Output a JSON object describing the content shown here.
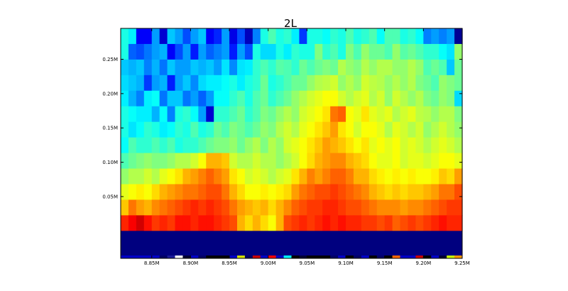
{
  "chart_data": {
    "type": "heatmap",
    "title": "2L",
    "xlabel": "",
    "ylabel": "",
    "x_range": [
      8810000,
      9250000
    ],
    "y_range": [
      -0.04,
      0.295
    ],
    "x_ticks": [
      8850000,
      8900000,
      8950000,
      9000000,
      9050000,
      9100000,
      9150000,
      9200000,
      9250000
    ],
    "x_tick_labels": [
      "8.85M",
      "8.90M",
      "8.95M",
      "9.00M",
      "9.05M",
      "9.10M",
      "9.15M",
      "9.20M",
      "9.25M"
    ],
    "y_ticks": [
      0.05,
      0.1,
      0.15,
      0.2,
      0.25
    ],
    "y_tick_labels": [
      "0.05M",
      "0.10M",
      "0.15M",
      "0.20M",
      "0.25M"
    ],
    "colormap": "jet",
    "value_range": [
      0,
      1
    ],
    "grid": false,
    "n_columns": 44,
    "n_rows": 13,
    "row_labels_bottom_to_top": [
      "0.05",
      "0.07",
      "0.09",
      "0.11",
      "0.13",
      "0.15",
      "0.17",
      "0.19",
      "0.21",
      "0.23",
      "0.25",
      "0.27",
      "0.29"
    ],
    "rows_top_to_bottom": [
      [
        0.4,
        0.36,
        0.12,
        0.12,
        0.28,
        0.08,
        0.32,
        0.28,
        0.2,
        0.28,
        0.32,
        0.12,
        0.16,
        0.28,
        0.1,
        0.2,
        0.06,
        0.25,
        0.4,
        0.45,
        0.4,
        0.42,
        0.36,
        0.18,
        0.4,
        0.4,
        0.38,
        0.42,
        0.4,
        0.45,
        0.4,
        0.42,
        0.45,
        0.38,
        0.45,
        0.45,
        0.4,
        0.42,
        0.38,
        0.25,
        0.28,
        0.25,
        0.28,
        0.02
      ],
      [
        0.4,
        0.22,
        0.2,
        0.24,
        0.28,
        0.3,
        0.12,
        0.2,
        0.28,
        0.15,
        0.28,
        0.22,
        0.25,
        0.28,
        0.15,
        0.28,
        0.2,
        0.4,
        0.34,
        0.34,
        0.4,
        0.36,
        0.42,
        0.4,
        0.4,
        0.5,
        0.42,
        0.45,
        0.4,
        0.5,
        0.45,
        0.52,
        0.48,
        0.48,
        0.45,
        0.52,
        0.46,
        0.48,
        0.45,
        0.42,
        0.42,
        0.38,
        0.35,
        0.52
      ],
      [
        0.32,
        0.3,
        0.32,
        0.25,
        0.3,
        0.24,
        0.32,
        0.28,
        0.28,
        0.32,
        0.3,
        0.32,
        0.28,
        0.35,
        0.26,
        0.35,
        0.36,
        0.42,
        0.45,
        0.42,
        0.46,
        0.45,
        0.42,
        0.48,
        0.45,
        0.48,
        0.5,
        0.48,
        0.55,
        0.52,
        0.5,
        0.55,
        0.52,
        0.55,
        0.55,
        0.52,
        0.52,
        0.55,
        0.52,
        0.45,
        0.48,
        0.45,
        0.32,
        0.48
      ],
      [
        0.34,
        0.32,
        0.3,
        0.18,
        0.28,
        0.3,
        0.15,
        0.28,
        0.32,
        0.26,
        0.34,
        0.36,
        0.36,
        0.38,
        0.4,
        0.36,
        0.4,
        0.42,
        0.48,
        0.4,
        0.42,
        0.45,
        0.48,
        0.48,
        0.52,
        0.55,
        0.56,
        0.58,
        0.52,
        0.55,
        0.52,
        0.58,
        0.56,
        0.55,
        0.52,
        0.55,
        0.52,
        0.55,
        0.5,
        0.48,
        0.45,
        0.52,
        0.5,
        0.48
      ],
      [
        0.36,
        0.3,
        0.25,
        0.36,
        0.38,
        0.24,
        0.32,
        0.32,
        0.24,
        0.28,
        0.22,
        0.28,
        0.38,
        0.38,
        0.42,
        0.45,
        0.4,
        0.45,
        0.48,
        0.42,
        0.45,
        0.48,
        0.52,
        0.55,
        0.58,
        0.6,
        0.62,
        0.62,
        0.58,
        0.55,
        0.58,
        0.6,
        0.55,
        0.58,
        0.52,
        0.58,
        0.55,
        0.52,
        0.55,
        0.5,
        0.48,
        0.52,
        0.5,
        0.34
      ],
      [
        0.4,
        0.38,
        0.36,
        0.36,
        0.3,
        0.38,
        0.25,
        0.4,
        0.42,
        0.38,
        0.28,
        0.08,
        0.42,
        0.42,
        0.45,
        0.48,
        0.42,
        0.45,
        0.5,
        0.48,
        0.52,
        0.55,
        0.52,
        0.58,
        0.6,
        0.62,
        0.65,
        0.76,
        0.78,
        0.62,
        0.6,
        0.65,
        0.6,
        0.58,
        0.6,
        0.55,
        0.58,
        0.6,
        0.56,
        0.55,
        0.52,
        0.55,
        0.55,
        0.5
      ],
      [
        0.4,
        0.35,
        0.38,
        0.42,
        0.4,
        0.36,
        0.38,
        0.42,
        0.4,
        0.45,
        0.4,
        0.42,
        0.48,
        0.45,
        0.5,
        0.48,
        0.45,
        0.48,
        0.52,
        0.5,
        0.55,
        0.58,
        0.55,
        0.6,
        0.62,
        0.65,
        0.68,
        0.72,
        0.65,
        0.62,
        0.58,
        0.62,
        0.62,
        0.6,
        0.55,
        0.6,
        0.58,
        0.55,
        0.58,
        0.52,
        0.55,
        0.58,
        0.55,
        0.52
      ],
      [
        0.38,
        0.45,
        0.42,
        0.42,
        0.45,
        0.42,
        0.45,
        0.4,
        0.42,
        0.42,
        0.45,
        0.48,
        0.5,
        0.5,
        0.52,
        0.48,
        0.52,
        0.55,
        0.5,
        0.55,
        0.52,
        0.58,
        0.6,
        0.62,
        0.65,
        0.68,
        0.72,
        0.7,
        0.68,
        0.65,
        0.62,
        0.65,
        0.6,
        0.62,
        0.6,
        0.62,
        0.58,
        0.6,
        0.58,
        0.55,
        0.58,
        0.6,
        0.58,
        0.55
      ],
      [
        0.45,
        0.48,
        0.5,
        0.52,
        0.5,
        0.5,
        0.52,
        0.55,
        0.55,
        0.58,
        0.62,
        0.7,
        0.7,
        0.68,
        0.58,
        0.55,
        0.55,
        0.58,
        0.55,
        0.55,
        0.52,
        0.55,
        0.58,
        0.62,
        0.66,
        0.7,
        0.72,
        0.74,
        0.74,
        0.7,
        0.68,
        0.66,
        0.62,
        0.6,
        0.6,
        0.62,
        0.58,
        0.6,
        0.6,
        0.58,
        0.6,
        0.62,
        0.62,
        0.6
      ],
      [
        0.52,
        0.55,
        0.55,
        0.58,
        0.55,
        0.6,
        0.62,
        0.65,
        0.7,
        0.72,
        0.75,
        0.78,
        0.75,
        0.72,
        0.65,
        0.62,
        0.58,
        0.6,
        0.58,
        0.55,
        0.58,
        0.6,
        0.65,
        0.7,
        0.75,
        0.72,
        0.75,
        0.78,
        0.78,
        0.75,
        0.7,
        0.7,
        0.66,
        0.64,
        0.62,
        0.64,
        0.62,
        0.64,
        0.62,
        0.62,
        0.64,
        0.68,
        0.66,
        0.72
      ],
      [
        0.6,
        0.62,
        0.64,
        0.62,
        0.66,
        0.7,
        0.72,
        0.74,
        0.76,
        0.76,
        0.78,
        0.8,
        0.8,
        0.76,
        0.7,
        0.66,
        0.62,
        0.62,
        0.64,
        0.62,
        0.64,
        0.66,
        0.72,
        0.76,
        0.78,
        0.8,
        0.8,
        0.82,
        0.8,
        0.78,
        0.76,
        0.74,
        0.7,
        0.68,
        0.66,
        0.68,
        0.66,
        0.68,
        0.68,
        0.7,
        0.72,
        0.76,
        0.76,
        0.8
      ],
      [
        0.68,
        0.76,
        0.72,
        0.7,
        0.74,
        0.76,
        0.78,
        0.8,
        0.82,
        0.84,
        0.82,
        0.84,
        0.82,
        0.8,
        0.76,
        0.72,
        0.7,
        0.68,
        0.7,
        0.66,
        0.7,
        0.74,
        0.78,
        0.8,
        0.82,
        0.82,
        0.84,
        0.84,
        0.82,
        0.8,
        0.8,
        0.78,
        0.76,
        0.74,
        0.74,
        0.74,
        0.72,
        0.74,
        0.74,
        0.76,
        0.78,
        0.8,
        0.82,
        0.82
      ],
      [
        0.84,
        0.88,
        0.92,
        0.86,
        0.82,
        0.84,
        0.82,
        0.86,
        0.86,
        0.84,
        0.86,
        0.86,
        0.84,
        0.82,
        0.8,
        0.7,
        0.66,
        0.7,
        0.66,
        0.62,
        0.7,
        0.8,
        0.82,
        0.84,
        0.82,
        0.84,
        0.86,
        0.84,
        0.86,
        0.84,
        0.84,
        0.82,
        0.82,
        0.8,
        0.82,
        0.78,
        0.8,
        0.82,
        0.8,
        0.82,
        0.84,
        0.86,
        0.84,
        0.84
      ]
    ],
    "masked_band": {
      "y_range": [
        -0.04,
        0.0
      ],
      "value": 0.0
    },
    "bottom_strip_colors": [
      "#0000c8",
      "#0000c8",
      "#0000c8",
      "#0000c8",
      "#0000c8",
      "#000066",
      "#1a1a9a",
      "#ffffff",
      "#000033",
      "#0000c8",
      "#000066",
      "#000000",
      "#000000",
      "#000000",
      "#0000c8",
      "#d4e000",
      "#000066",
      "#c80000",
      "#0000c8",
      "#ff0000",
      "#0000c8",
      "#00ffff",
      "#000000",
      "#000033",
      "#000000",
      "#000000",
      "#000000",
      "#000066",
      "#0000c8",
      "#000000",
      "#000066",
      "#0000c8",
      "#000000",
      "#000066",
      "#000000",
      "#ff6600",
      "#0000c8",
      "#0000c8",
      "#c80000",
      "#000000",
      "#0000c8",
      "#000033",
      "#c8ff00",
      "#ff9900"
    ]
  }
}
